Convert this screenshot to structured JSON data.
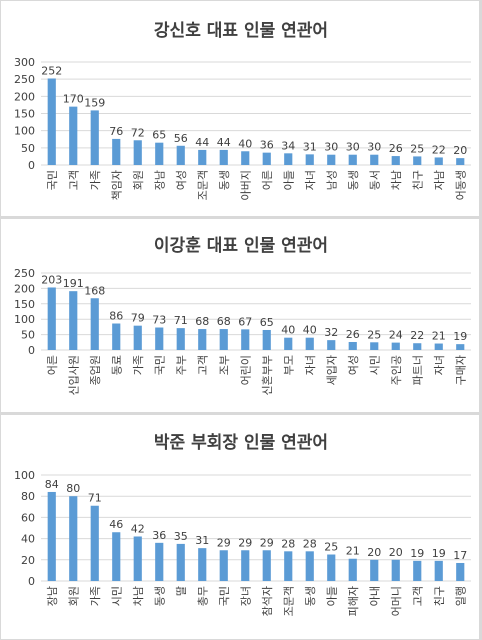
{
  "chart_data": [
    {
      "type": "bar",
      "title": "강신호 대표 인물 연관어",
      "xlabel": "",
      "ylabel": "",
      "ylim": [
        0,
        300
      ],
      "yticks": [
        0,
        50,
        100,
        150,
        200,
        250,
        300
      ],
      "grid": true,
      "bar_color": "#5b9bd5",
      "categories": [
        "국민",
        "고객",
        "가족",
        "책임자",
        "회원",
        "장남",
        "여성",
        "조문객",
        "동생",
        "아버지",
        "어른",
        "아들",
        "자녀",
        "남성",
        "동생",
        "동서",
        "차남",
        "친구",
        "자남",
        "어동생"
      ],
      "values": [
        252,
        170,
        159,
        76,
        72,
        65,
        56,
        44,
        44,
        40,
        36,
        34,
        31,
        30,
        30,
        30,
        26,
        25,
        22,
        20
      ]
    },
    {
      "type": "bar",
      "title": "이강훈 대표 인물 연관어",
      "xlabel": "",
      "ylabel": "",
      "ylim": [
        0,
        250
      ],
      "yticks": [
        0,
        50,
        100,
        150,
        200,
        250
      ],
      "grid": true,
      "bar_color": "#5b9bd5",
      "categories": [
        "어른",
        "신입사원",
        "종업원",
        "동료",
        "가족",
        "국민",
        "주부",
        "고객",
        "조부",
        "어린이",
        "신혼부부",
        "부모",
        "자녀",
        "세입자",
        "여성",
        "시민",
        "주인공",
        "파트너",
        "자녀",
        "구매자"
      ],
      "values": [
        203,
        191,
        168,
        86,
        79,
        73,
        71,
        68,
        68,
        67,
        65,
        40,
        40,
        32,
        26,
        25,
        24,
        22,
        21,
        19
      ]
    },
    {
      "type": "bar",
      "title": "박준 부회장 인물 연관어",
      "xlabel": "",
      "ylabel": "",
      "ylim": [
        0,
        100
      ],
      "yticks": [
        0,
        20,
        40,
        60,
        80,
        100
      ],
      "grid": true,
      "bar_color": "#5b9bd5",
      "categories": [
        "장남",
        "회원",
        "가족",
        "시민",
        "차남",
        "동생",
        "딸",
        "총무",
        "국민",
        "장녀",
        "참석자",
        "조문객",
        "동생",
        "아들",
        "피해자",
        "아내",
        "어머니",
        "고객",
        "친구",
        "일행"
      ],
      "values": [
        84,
        80,
        71,
        46,
        42,
        36,
        35,
        31,
        29,
        29,
        29,
        28,
        28,
        25,
        21,
        20,
        20,
        19,
        19,
        17
      ]
    }
  ]
}
